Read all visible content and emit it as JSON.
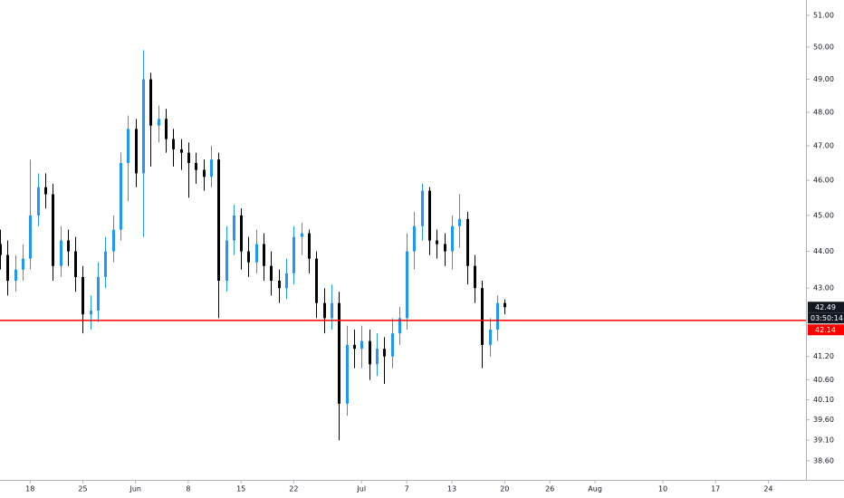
{
  "chart_data": {
    "type": "candlestick",
    "log_scale": true,
    "up_color": "#2196f3",
    "down_color": "#000000",
    "x": [
      -4,
      -3,
      -2,
      -1,
      0,
      1,
      2,
      3,
      4,
      5,
      6,
      7,
      8,
      9,
      10,
      11,
      12,
      13,
      14,
      15,
      16,
      17,
      18,
      19,
      20,
      21,
      22,
      23,
      24,
      25,
      26,
      27,
      28,
      29,
      30,
      31,
      32,
      33,
      34,
      35,
      36,
      37,
      38,
      39,
      40,
      41,
      42,
      43,
      44,
      45,
      46,
      47,
      48,
      49,
      50,
      51,
      52,
      53,
      54,
      55,
      56,
      57,
      58,
      59,
      60,
      61,
      62,
      63
    ],
    "open": [
      44.2,
      43.9,
      43.2,
      43.5,
      43.8,
      45.0,
      45.8,
      45.6,
      43.6,
      44.3,
      44.0,
      43.3,
      42.3,
      42.4,
      43.3,
      44.0,
      44.6,
      46.5,
      47.5,
      46.2,
      49.0,
      47.6,
      47.8,
      47.2,
      46.9,
      46.8,
      46.5,
      46.3,
      46.1,
      46.6,
      43.2,
      44.3,
      45.0,
      44.0,
      43.7,
      44.2,
      43.6,
      43.2,
      43.0,
      43.4,
      44.4,
      44.5,
      43.8,
      42.6,
      42.2,
      42.6,
      40.0,
      41.5,
      41.4,
      41.6,
      41.0,
      41.4,
      41.2,
      41.8,
      42.2,
      44.0,
      44.7,
      45.7,
      44.3,
      44.2,
      44.0,
      44.7,
      44.9,
      43.6,
      43.0,
      41.5,
      41.9,
      42.6
    ],
    "high": [
      44.6,
      44.3,
      43.9,
      44.2,
      46.6,
      46.2,
      46.2,
      45.9,
      44.7,
      44.6,
      44.4,
      43.6,
      42.8,
      43.7,
      44.4,
      45.0,
      46.8,
      47.9,
      47.8,
      49.9,
      49.2,
      48.2,
      48.1,
      47.5,
      47.2,
      47.1,
      46.8,
      46.6,
      47.0,
      46.8,
      44.7,
      45.3,
      45.2,
      44.4,
      44.6,
      44.5,
      44.0,
      43.5,
      43.8,
      44.7,
      44.8,
      44.6,
      44.0,
      43.0,
      43.1,
      42.9,
      42.0,
      41.9,
      42.0,
      41.9,
      41.8,
      41.7,
      42.2,
      42.5,
      44.5,
      45.1,
      45.9,
      45.8,
      44.6,
      44.5,
      45.0,
      45.6,
      45.1,
      43.9,
      43.2,
      42.2,
      42.8,
      42.7
    ],
    "low": [
      43.5,
      42.8,
      42.9,
      43.2,
      43.5,
      44.7,
      45.2,
      43.2,
      43.3,
      43.6,
      42.9,
      41.8,
      41.9,
      42.1,
      43.0,
      43.7,
      44.3,
      45.4,
      45.8,
      44.4,
      46.4,
      47.1,
      46.8,
      46.4,
      46.3,
      45.5,
      45.9,
      45.7,
      45.8,
      42.2,
      42.9,
      43.9,
      43.5,
      43.3,
      43.4,
      43.2,
      42.8,
      42.6,
      42.7,
      43.1,
      43.9,
      43.4,
      42.2,
      41.8,
      41.9,
      39.1,
      39.7,
      40.9,
      40.9,
      40.6,
      40.7,
      40.5,
      40.9,
      41.5,
      41.9,
      43.5,
      44.3,
      43.9,
      43.8,
      43.6,
      43.5,
      44.1,
      43.1,
      42.6,
      40.9,
      41.2,
      41.6,
      42.3
    ],
    "close": [
      43.9,
      43.2,
      43.5,
      43.8,
      45.0,
      45.8,
      45.6,
      43.6,
      44.3,
      44.0,
      43.3,
      42.3,
      42.4,
      43.3,
      44.0,
      44.6,
      46.5,
      47.5,
      46.2,
      49.0,
      47.6,
      47.8,
      47.2,
      46.9,
      46.8,
      46.5,
      46.3,
      46.1,
      46.6,
      43.2,
      44.3,
      45.0,
      44.0,
      43.7,
      44.2,
      43.6,
      43.2,
      43.0,
      43.4,
      44.4,
      44.5,
      43.8,
      42.6,
      42.2,
      42.6,
      40.0,
      41.5,
      41.4,
      41.6,
      41.0,
      41.4,
      41.2,
      41.8,
      42.2,
      44.0,
      44.7,
      45.7,
      44.3,
      44.2,
      44.0,
      44.7,
      44.9,
      43.6,
      43.0,
      41.5,
      41.9,
      42.6,
      42.49
    ],
    "xlim": [
      -4,
      103
    ],
    "xticks": [
      {
        "value": 0,
        "label": "18"
      },
      {
        "value": 7,
        "label": "25"
      },
      {
        "value": 14,
        "label": "Jun"
      },
      {
        "value": 21,
        "label": "8"
      },
      {
        "value": 28,
        "label": "15"
      },
      {
        "value": 35,
        "label": "22"
      },
      {
        "value": 44,
        "label": "Jul"
      },
      {
        "value": 50,
        "label": "7"
      },
      {
        "value": 56,
        "label": "13"
      },
      {
        "value": 63,
        "label": "20"
      },
      {
        "value": 69,
        "label": "26"
      },
      {
        "value": 75,
        "label": "Aug"
      },
      {
        "value": 84,
        "label": "10"
      },
      {
        "value": 91,
        "label": "17"
      },
      {
        "value": 98,
        "label": "24"
      }
    ],
    "ylim": [
      38.14,
      51.49
    ],
    "yticks": [
      {
        "value": 51,
        "label": "51.00"
      },
      {
        "value": 50,
        "label": "50.00"
      },
      {
        "value": 49,
        "label": "49.00"
      },
      {
        "value": 48,
        "label": "48.00"
      },
      {
        "value": 47,
        "label": "47.00"
      },
      {
        "value": 46,
        "label": "46.00"
      },
      {
        "value": 45,
        "label": "45.00"
      },
      {
        "value": 44,
        "label": "44.00"
      },
      {
        "value": 43,
        "label": "43.00"
      },
      {
        "value": 41.2,
        "label": "41.20"
      },
      {
        "value": 40.6,
        "label": "40.60"
      },
      {
        "value": 40.1,
        "label": "40.10"
      },
      {
        "value": 39.6,
        "label": "39.60"
      },
      {
        "value": 39.1,
        "label": "39.10"
      },
      {
        "value": 38.6,
        "label": "38.60"
      }
    ],
    "last_price": 42.49,
    "countdown": "03:50:14",
    "hline": {
      "value": 42.14,
      "color": "#ff0000"
    }
  }
}
